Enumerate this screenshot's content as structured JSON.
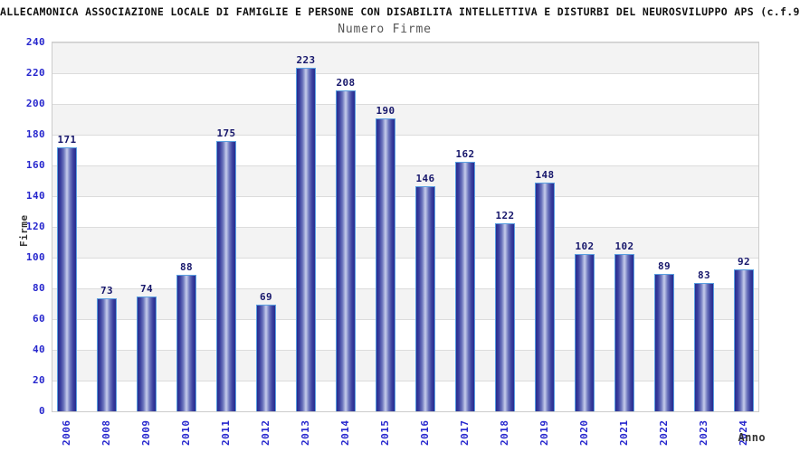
{
  "chart_data": {
    "type": "bar",
    "title": "ALLECAMONICA ASSOCIAZIONE LOCALE DI FAMIGLIE E PERSONE CON DISABILITA INTELLETTIVA E DISTURBI DEL NEUROSVILUPPO APS (c.f.9",
    "subtitle": "Numero Firme",
    "xlabel": "Anno",
    "ylabel": "Firme",
    "categories": [
      "2006",
      "2008",
      "2009",
      "2010",
      "2011",
      "2012",
      "2013",
      "2014",
      "2015",
      "2016",
      "2017",
      "2018",
      "2019",
      "2020",
      "2021",
      "2022",
      "2023",
      "2024"
    ],
    "values": [
      171,
      73,
      74,
      88,
      175,
      69,
      223,
      208,
      190,
      146,
      162,
      122,
      148,
      102,
      102,
      89,
      83,
      92
    ],
    "ylim": [
      0,
      240
    ],
    "ytick_step": 20,
    "grid": "horizontal alternating bands",
    "legend": "none",
    "colors": {
      "title": "#111111",
      "subtitle": "#555555",
      "tick": "#2626cd",
      "value_label": "#16166b",
      "axis_label": "#333333",
      "plot_border": "#cccccc",
      "grid_line": "#dcdcdc",
      "band": "#f3f3f3",
      "bar_border": "#5a9fe0",
      "bar_dark": "#272c90",
      "bar_light": "#c6cdec"
    }
  }
}
